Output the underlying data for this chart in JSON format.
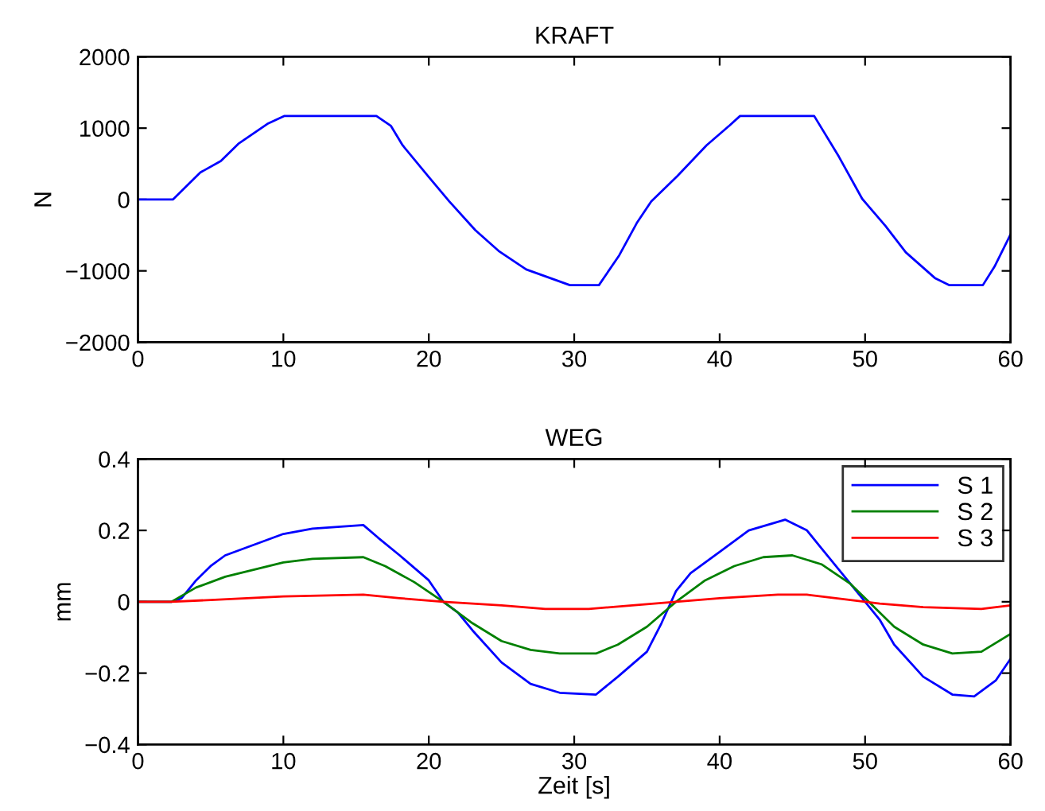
{
  "chart_data": [
    {
      "type": "line",
      "title": "KRAFT",
      "ylabel": "N",
      "xlim": [
        0,
        60
      ],
      "xticks": [
        0,
        10,
        20,
        30,
        40,
        50,
        60
      ],
      "ylim": [
        -2000,
        2000
      ],
      "yticks": [
        -2000,
        -1000,
        0,
        1000,
        2000
      ],
      "grid": false,
      "legend": false,
      "series": [
        {
          "color": "#0000ff",
          "x": [
            0,
            2.4,
            4.3,
            5.7,
            6.9,
            8.9,
            10.05,
            16.4,
            17.4,
            18.2,
            20.0,
            21.4,
            23.2,
            24.8,
            26.7,
            29.7,
            31.7,
            33.1,
            34.3,
            35.3,
            37.1,
            39.1,
            40.7,
            41.4,
            46.5,
            48.2,
            49.8,
            51.4,
            52.8,
            54.8,
            55.8,
            58.1,
            58.9,
            60
          ],
          "values": [
            0,
            0,
            380,
            540,
            780,
            1060,
            1170,
            1170,
            1030,
            760,
            315,
            -25,
            -430,
            -720,
            -980,
            -1200,
            -1200,
            -780,
            -330,
            -25,
            330,
            760,
            1040,
            1170,
            1170,
            600,
            10,
            -370,
            -740,
            -1100,
            -1200,
            -1200,
            -940,
            -490
          ]
        }
      ]
    },
    {
      "type": "line",
      "title": "WEG",
      "xlabel": "Zeit [s]",
      "ylabel": "mm",
      "xlim": [
        0,
        60
      ],
      "xticks": [
        0,
        10,
        20,
        30,
        40,
        50,
        60
      ],
      "ylim": [
        -0.4,
        0.4
      ],
      "yticks": [
        -0.4,
        -0.2,
        0,
        0.2,
        0.4
      ],
      "grid": false,
      "legend": "top right",
      "series": [
        {
          "name": "S 1",
          "color": "#0000ff",
          "x": [
            0,
            2.3,
            3,
            4,
            5,
            6,
            8,
            10,
            12,
            15.5,
            16.5,
            18,
            20,
            21,
            22,
            23,
            25,
            27,
            29,
            31.5,
            33,
            35,
            36,
            37,
            38,
            40,
            42,
            44.5,
            46,
            47,
            49,
            50,
            51,
            52,
            54,
            56,
            57.5,
            59,
            60
          ],
          "values": [
            0,
            0,
            0.01,
            0.06,
            0.1,
            0.13,
            0.16,
            0.19,
            0.205,
            0.215,
            0.18,
            0.13,
            0.06,
            0.0,
            -0.03,
            -0.08,
            -0.17,
            -0.23,
            -0.255,
            -0.26,
            -0.21,
            -0.14,
            -0.06,
            0.03,
            0.08,
            0.14,
            0.2,
            0.23,
            0.2,
            0.15,
            0.05,
            0.0,
            -0.05,
            -0.12,
            -0.21,
            -0.26,
            -0.265,
            -0.22,
            -0.16
          ]
        },
        {
          "name": "S 2",
          "color": "#008000",
          "x": [
            0,
            2.3,
            4,
            6,
            8,
            10,
            12,
            15.5,
            17,
            19,
            21,
            23,
            25,
            27,
            29,
            31.5,
            33,
            35,
            37,
            39,
            41,
            43,
            45,
            47,
            49,
            50.5,
            52,
            54,
            56,
            58,
            60
          ],
          "values": [
            0,
            0,
            0.04,
            0.07,
            0.09,
            0.11,
            0.12,
            0.125,
            0.1,
            0.055,
            0.0,
            -0.06,
            -0.11,
            -0.135,
            -0.145,
            -0.145,
            -0.12,
            -0.07,
            0.0,
            0.06,
            0.1,
            0.125,
            0.13,
            0.105,
            0.05,
            -0.01,
            -0.07,
            -0.12,
            -0.145,
            -0.14,
            -0.09
          ]
        },
        {
          "name": "S 3",
          "color": "#ff0000",
          "x": [
            0,
            2.3,
            5,
            10,
            15.5,
            18,
            21,
            25,
            28,
            31,
            34,
            37,
            40,
            44,
            46,
            49,
            51,
            54,
            58,
            60
          ],
          "values": [
            0,
            0,
            0.005,
            0.015,
            0.02,
            0.01,
            0,
            -0.01,
            -0.02,
            -0.02,
            -0.01,
            0.0,
            0.01,
            0.02,
            0.02,
            0.005,
            -0.005,
            -0.015,
            -0.02,
            -0.01
          ]
        }
      ]
    }
  ]
}
